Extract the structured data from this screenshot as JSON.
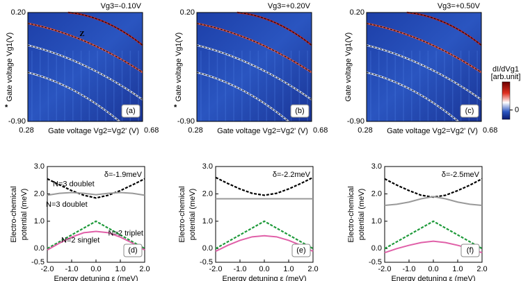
{
  "chart_data": [
    {
      "type": "heatmap",
      "title": "Vg3=-0.10V",
      "xlabel": "Gate voltage Vg2=Vg2' (V)",
      "ylabel": "Gate voltage Vg1(V)",
      "xlim": [
        0.28,
        0.68
      ],
      "ylim": [
        -0.9,
        0.2
      ],
      "xticks": [
        0.28,
        0.68
      ],
      "yticks": [
        {
          "value": -0.9,
          "label": "-0.90"
        },
        {
          "value": 0.2,
          "label": "0.20"
        }
      ],
      "panel": "(a)",
      "annotations": [
        "Z",
        "*"
      ]
    },
    {
      "type": "heatmap",
      "title": "Vg3=+0.20V",
      "xlabel": "Gate voltage Vg2=Vg2' (V)",
      "ylabel": "Gate voltage Vg1(V)",
      "xlim": [
        0.28,
        0.68
      ],
      "ylim": [
        -0.9,
        0.2
      ],
      "xticks": [
        0.28,
        0.68
      ],
      "yticks": [
        {
          "value": -0.9,
          "label": "-0.90"
        },
        {
          "value": 0.2,
          "label": "0.20"
        }
      ],
      "panel": "(b)",
      "annotations": [
        "*"
      ]
    },
    {
      "type": "heatmap",
      "title": "Vg3=+0.50V",
      "xlabel": "Gate voltage Vg2=Vg2' (V)",
      "ylabel": "Gate voltage Vg1(V)",
      "xlim": [
        0.28,
        0.68
      ],
      "ylim": [
        -0.9,
        0.2
      ],
      "xticks": [
        0.28,
        0.68
      ],
      "yticks": [
        {
          "value": -0.9,
          "label": "-0.90"
        },
        {
          "value": 0.2,
          "label": "0.20"
        }
      ],
      "panel": "(c)",
      "colorbar": {
        "label": "dI/dVg1",
        "unit": "[arb.unit]",
        "ticks": [
          0
        ]
      }
    },
    {
      "type": "line",
      "annotation": "δ=-1.9meV",
      "panel": "(d)",
      "xlabel": "Energy detuning ε (meV)",
      "ylabel": [
        "Electro-chemical",
        "potential (meV)"
      ],
      "xlim": [
        -2,
        2
      ],
      "ylim": [
        -0.5,
        3
      ],
      "xticks": [
        {
          "value": -2,
          "label": "-2.0"
        },
        {
          "value": -1,
          "label": "-1.0"
        },
        {
          "value": 0,
          "label": "0.0"
        },
        {
          "value": 1,
          "label": "1.0"
        },
        {
          "value": 2,
          "label": "2.0"
        }
      ],
      "yticks": [
        {
          "value": -0.5,
          "label": "-0.5"
        },
        {
          "value": 0,
          "label": "0.0"
        },
        {
          "value": 1,
          "label": "1.0"
        },
        {
          "value": 2,
          "label": "2.0"
        },
        {
          "value": 3,
          "label": "3.0"
        }
      ],
      "x": [
        -2,
        -1.5,
        -1,
        -0.5,
        0,
        0.5,
        1,
        1.5,
        2
      ],
      "series": [
        {
          "name": "N=3 doublet",
          "color": "#000000",
          "dash": true,
          "values": [
            2.55,
            2.33,
            2.12,
            1.95,
            1.85,
            1.95,
            2.12,
            2.33,
            2.55
          ]
        },
        {
          "name": "N=3 doublet",
          "color": "#999999",
          "dash": false,
          "values": [
            1.95,
            2.02,
            2.05,
            2.02,
            1.97,
            2.02,
            2.05,
            2.02,
            1.95
          ]
        },
        {
          "name": "N=2 triplet",
          "color": "#1e9a3a",
          "dash": true,
          "values": [
            0,
            0.25,
            0.5,
            0.75,
            1,
            0.75,
            0.5,
            0.25,
            0
          ]
        },
        {
          "name": "N=2 singlet",
          "color": "#e060a8",
          "dash": false,
          "values": [
            -0.05,
            0.2,
            0.42,
            0.58,
            0.63,
            0.58,
            0.42,
            0.2,
            -0.05
          ]
        }
      ]
    },
    {
      "type": "line",
      "annotation": "δ=-2.2meV",
      "panel": "(e)",
      "xlabel": "Energy detuning ε (meV)",
      "ylabel": [
        "Electro-chemical",
        "potential (meV)"
      ],
      "xlim": [
        -2,
        2
      ],
      "ylim": [
        -0.5,
        3
      ],
      "xticks": [
        {
          "value": -2,
          "label": "-2.0"
        },
        {
          "value": -1,
          "label": "-1.0"
        },
        {
          "value": 0,
          "label": "0.0"
        },
        {
          "value": 1,
          "label": "1.0"
        },
        {
          "value": 2,
          "label": "2.0"
        }
      ],
      "yticks": [
        {
          "value": -0.5,
          "label": "-0.5"
        },
        {
          "value": 0,
          "label": "0.0"
        },
        {
          "value": 1,
          "label": "1.0"
        },
        {
          "value": 2,
          "label": "2.0"
        },
        {
          "value": 3,
          "label": "3.0"
        }
      ],
      "x": [
        -2,
        -1.5,
        -1,
        -0.5,
        0,
        0.5,
        1,
        1.5,
        2
      ],
      "series": [
        {
          "color": "#000000",
          "dash": true,
          "values": [
            2.6,
            2.38,
            2.18,
            2.02,
            1.95,
            2.02,
            2.18,
            2.38,
            2.6
          ]
        },
        {
          "color": "#999999",
          "dash": false,
          "values": [
            1.82,
            1.82,
            1.82,
            1.82,
            1.82,
            1.82,
            1.82,
            1.82,
            1.82
          ]
        },
        {
          "color": "#1e9a3a",
          "dash": true,
          "values": [
            0,
            0.25,
            0.5,
            0.75,
            1,
            0.75,
            0.5,
            0.25,
            0
          ]
        },
        {
          "color": "#e060a8",
          "dash": false,
          "values": [
            -0.1,
            0.12,
            0.3,
            0.43,
            0.47,
            0.43,
            0.3,
            0.12,
            -0.1
          ]
        }
      ]
    },
    {
      "type": "line",
      "annotation": "δ=-2.5meV",
      "panel": "(f)",
      "xlabel": "Energy detuning ε (meV)",
      "ylabel": [
        "Electro-chemical",
        "potential (meV)"
      ],
      "xlim": [
        -2,
        2
      ],
      "ylim": [
        -0.5,
        3
      ],
      "xticks": [
        {
          "value": -2,
          "label": "-2.0"
        },
        {
          "value": -1,
          "label": "-1.0"
        },
        {
          "value": 0,
          "label": "0.0"
        },
        {
          "value": 1,
          "label": "1.0"
        },
        {
          "value": 2,
          "label": "2.0"
        }
      ],
      "yticks": [
        {
          "value": -0.5,
          "label": "-0.5"
        },
        {
          "value": 0,
          "label": "0.0"
        },
        {
          "value": 1,
          "label": "1.0"
        },
        {
          "value": 2,
          "label": "2.0"
        },
        {
          "value": 3,
          "label": "3.0"
        }
      ],
      "x": [
        -2,
        -1.5,
        -1,
        -0.5,
        0,
        0.5,
        1,
        1.5,
        2
      ],
      "series": [
        {
          "color": "#000000",
          "dash": true,
          "values": [
            2.55,
            2.32,
            2.12,
            1.95,
            1.88,
            1.95,
            2.12,
            2.32,
            2.55
          ]
        },
        {
          "color": "#999999",
          "dash": false,
          "values": [
            1.58,
            1.62,
            1.7,
            1.82,
            1.9,
            1.82,
            1.7,
            1.62,
            1.58
          ]
        },
        {
          "color": "#1e9a3a",
          "dash": true,
          "values": [
            0,
            0.25,
            0.5,
            0.75,
            1,
            0.75,
            0.5,
            0.25,
            0
          ]
        },
        {
          "color": "#e060a8",
          "dash": false,
          "values": [
            -0.15,
            0,
            0.12,
            0.22,
            0.27,
            0.22,
            0.12,
            0,
            -0.15
          ]
        }
      ]
    }
  ]
}
